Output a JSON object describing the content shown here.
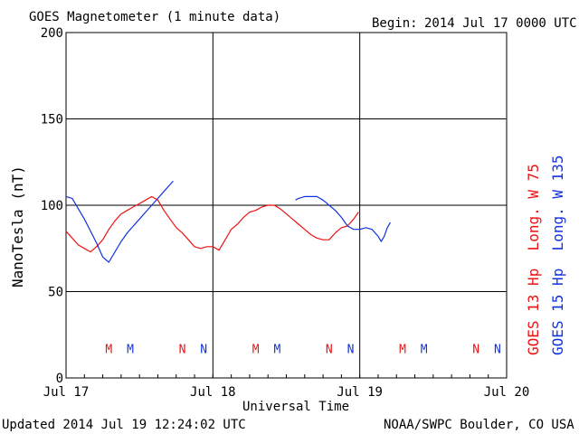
{
  "header": {
    "title": "GOES Magnetometer (1 minute data)",
    "begin_label": "Begin:",
    "begin_value": "2014 Jul 17 0000 UTC"
  },
  "footer": {
    "updated": "Updated 2014 Jul 19 12:24:02 UTC",
    "credit": "NOAA/SWPC Boulder, CO USA"
  },
  "chart_data": {
    "type": "line",
    "title": "GOES Magnetometer (1 minute data)",
    "xlabel": "Universal Time",
    "ylabel": "NanoTesla (nT)",
    "xlim": [
      0,
      72
    ],
    "ylim": [
      0,
      200
    ],
    "x_unit": "hours since 2014 Jul 17 0000 UTC",
    "x_ticks": [
      {
        "value": 0,
        "label": "Jul 17"
      },
      {
        "value": 24,
        "label": "Jul 18"
      },
      {
        "value": 48,
        "label": "Jul 19"
      },
      {
        "value": 72,
        "label": "Jul 20"
      }
    ],
    "y_ticks": [
      0,
      50,
      100,
      150,
      200
    ],
    "grid": true,
    "series": [
      {
        "name": "GOES 13 Hp  Long. W 75",
        "color": "#ee1111",
        "points": [
          [
            0,
            85
          ],
          [
            1,
            81
          ],
          [
            2,
            77
          ],
          [
            3,
            75
          ],
          [
            4,
            73
          ],
          [
            5,
            76
          ],
          [
            6,
            80
          ],
          [
            7,
            86
          ],
          [
            8,
            91
          ],
          [
            9,
            95
          ],
          [
            10,
            97
          ],
          [
            11,
            99
          ],
          [
            12,
            101
          ],
          [
            13,
            103
          ],
          [
            14,
            105
          ],
          [
            15,
            103
          ],
          [
            16,
            97
          ],
          [
            17,
            92
          ],
          [
            18,
            87
          ],
          [
            19,
            84
          ],
          [
            20,
            80
          ],
          [
            21,
            76
          ],
          [
            22,
            75
          ],
          [
            23,
            76
          ],
          [
            24,
            76
          ],
          [
            25,
            74
          ],
          [
            26,
            80
          ],
          [
            27,
            86
          ],
          [
            28,
            89
          ],
          [
            29,
            93
          ],
          [
            30,
            96
          ],
          [
            31,
            97
          ],
          [
            32,
            99
          ],
          [
            33,
            100
          ],
          [
            34,
            100
          ],
          [
            35,
            98
          ],
          [
            36,
            95
          ],
          [
            37,
            92
          ],
          [
            38,
            89
          ],
          [
            39,
            86
          ],
          [
            40,
            83
          ],
          [
            41,
            81
          ],
          [
            42,
            80
          ],
          [
            43,
            80
          ],
          [
            44,
            84
          ],
          [
            45,
            87
          ],
          [
            46,
            88
          ],
          [
            47,
            92
          ],
          [
            47.8,
            96
          ]
        ]
      },
      {
        "name": "GOES 15 Hp  Long. W 135",
        "color": "#1133dd",
        "segments": [
          [
            [
              0,
              105
            ],
            [
              1,
              104
            ],
            [
              2,
              98
            ],
            [
              3,
              92
            ],
            [
              4,
              85
            ],
            [
              5,
              78
            ],
            [
              6,
              70
            ],
            [
              7,
              67
            ],
            [
              8,
              73
            ],
            [
              9,
              79
            ],
            [
              10,
              84
            ],
            [
              11,
              88
            ],
            [
              12,
              92
            ],
            [
              13,
              96
            ],
            [
              14,
              100
            ],
            [
              15,
              104
            ],
            [
              16,
              108
            ],
            [
              17,
              112
            ],
            [
              17.5,
              114
            ]
          ],
          [
            [
              37.5,
              103
            ],
            [
              38,
              104
            ],
            [
              39,
              105
            ],
            [
              40,
              105
            ],
            [
              41,
              105
            ],
            [
              42,
              103
            ],
            [
              43,
              100
            ],
            [
              44,
              97
            ],
            [
              45,
              93
            ],
            [
              46,
              88
            ],
            [
              47,
              86
            ],
            [
              48,
              86
            ],
            [
              49,
              87
            ],
            [
              50,
              86
            ],
            [
              51,
              82
            ],
            [
              51.5,
              79
            ],
            [
              52,
              82
            ],
            [
              52.5,
              87
            ],
            [
              53,
              90
            ]
          ]
        ]
      }
    ],
    "annotations": [
      {
        "text": "M",
        "x": 7,
        "y": 17,
        "color": "#ee1111"
      },
      {
        "text": "M",
        "x": 10.5,
        "y": 17,
        "color": "#1133dd"
      },
      {
        "text": "N",
        "x": 19,
        "y": 17,
        "color": "#ee1111"
      },
      {
        "text": "N",
        "x": 22.5,
        "y": 17,
        "color": "#1133dd"
      },
      {
        "text": "M",
        "x": 31,
        "y": 17,
        "color": "#ee1111"
      },
      {
        "text": "M",
        "x": 34.5,
        "y": 17,
        "color": "#1133dd"
      },
      {
        "text": "N",
        "x": 43,
        "y": 17,
        "color": "#ee1111"
      },
      {
        "text": "N",
        "x": 46.5,
        "y": 17,
        "color": "#1133dd"
      },
      {
        "text": "M",
        "x": 55,
        "y": 17,
        "color": "#ee1111"
      },
      {
        "text": "M",
        "x": 58.5,
        "y": 17,
        "color": "#1133dd"
      },
      {
        "text": "N",
        "x": 67,
        "y": 17,
        "color": "#ee1111"
      },
      {
        "text": "N",
        "x": 70.5,
        "y": 17,
        "color": "#1133dd"
      }
    ]
  }
}
